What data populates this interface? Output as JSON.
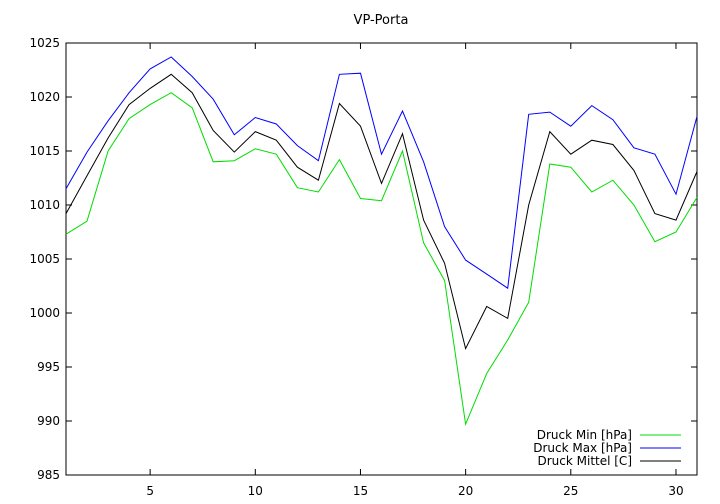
{
  "chart_data": {
    "type": "line",
    "title": "VP-Porta",
    "xlabel": "",
    "ylabel": "",
    "xlim": [
      1,
      31
    ],
    "ylim": [
      985,
      1025
    ],
    "x_ticks": [
      5,
      10,
      15,
      20,
      25,
      30
    ],
    "y_ticks": [
      985,
      990,
      995,
      1000,
      1005,
      1010,
      1015,
      1020,
      1025
    ],
    "grid": false,
    "legend_position": "bottom-right",
    "x": [
      1,
      2,
      3,
      4,
      5,
      6,
      7,
      8,
      9,
      10,
      11,
      12,
      13,
      14,
      15,
      16,
      17,
      18,
      19,
      20,
      21,
      22,
      23,
      24,
      25,
      26,
      27,
      28,
      29,
      30,
      31
    ],
    "series": [
      {
        "name": "Druck Min [hPa]",
        "color": "#00dd00",
        "values": [
          1007.3,
          1008.5,
          1015.0,
          1018.0,
          1019.3,
          1020.4,
          1019.0,
          1014.0,
          1014.1,
          1015.2,
          1014.7,
          1011.6,
          1011.2,
          1014.2,
          1010.6,
          1010.4,
          1015.0,
          1006.5,
          1003.0,
          989.7,
          994.4,
          997.5,
          1001.0,
          1013.8,
          1013.5,
          1011.2,
          1012.3,
          1010.0,
          1006.6,
          1007.5,
          1010.7
        ]
      },
      {
        "name": "Druck Max [hPa]",
        "color": "#0000ff",
        "values": [
          1011.5,
          1014.9,
          1017.8,
          1020.4,
          1022.6,
          1023.7,
          1021.9,
          1019.8,
          1016.5,
          1018.1,
          1017.5,
          1015.5,
          1014.1,
          1022.1,
          1022.2,
          1014.7,
          1018.7,
          1014.0,
          1008.0,
          1004.9,
          1003.6,
          1002.3,
          1018.4,
          1018.6,
          1017.3,
          1019.2,
          1017.9,
          1015.3,
          1014.7,
          1011.0,
          1018.2
        ]
      },
      {
        "name": "Druck Mittel [C]",
        "color": "#000000",
        "values": [
          1009.2,
          1012.7,
          1016.2,
          1019.3,
          1020.8,
          1022.1,
          1020.4,
          1016.9,
          1014.9,
          1016.8,
          1016.0,
          1013.5,
          1012.3,
          1019.4,
          1017.3,
          1012.0,
          1016.6,
          1008.6,
          1004.6,
          996.7,
          1000.6,
          999.5,
          1010.0,
          1016.8,
          1014.7,
          1016.0,
          1015.6,
          1013.2,
          1009.2,
          1008.6,
          1013.1
        ]
      }
    ]
  }
}
